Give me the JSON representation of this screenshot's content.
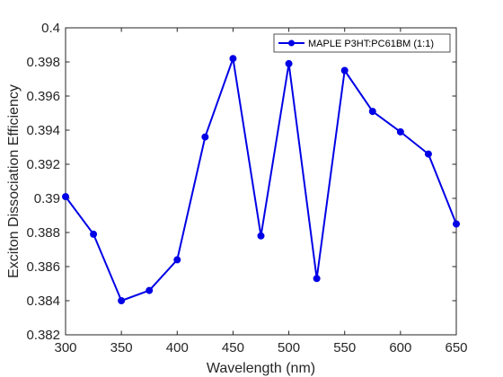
{
  "chart_data": {
    "type": "line",
    "xlabel": "Wavelength (nm)",
    "ylabel": "Exciton Dissociation Efficiency",
    "xlim": [
      300,
      650
    ],
    "ylim": [
      0.382,
      0.4
    ],
    "x_ticks": [
      300,
      350,
      400,
      450,
      500,
      550,
      600,
      650
    ],
    "x_tick_labels": [
      "300",
      "350",
      "400",
      "450",
      "500",
      "550",
      "600",
      "650"
    ],
    "y_ticks": [
      0.382,
      0.384,
      0.386,
      0.388,
      0.39,
      0.392,
      0.394,
      0.396,
      0.398,
      0.4
    ],
    "y_tick_labels": [
      "0.382",
      "0.384",
      "0.386",
      "0.388",
      "0.39",
      "0.392",
      "0.394",
      "0.396",
      "0.398",
      "0.4"
    ],
    "grid": false,
    "legend_position": "top-right",
    "series": [
      {
        "name": "MAPLE P3HT:PC61BM (1:1)",
        "color": "#0000e6",
        "marker": "circle",
        "x": [
          300,
          325,
          350,
          375,
          400,
          425,
          450,
          475,
          500,
          525,
          550,
          575,
          600,
          625,
          650
        ],
        "y": [
          0.3901,
          0.3879,
          0.384,
          0.3846,
          0.3864,
          0.3936,
          0.3982,
          0.3878,
          0.3979,
          0.3853,
          0.3975,
          0.3951,
          0.3939,
          0.3926,
          0.3885
        ]
      }
    ]
  }
}
